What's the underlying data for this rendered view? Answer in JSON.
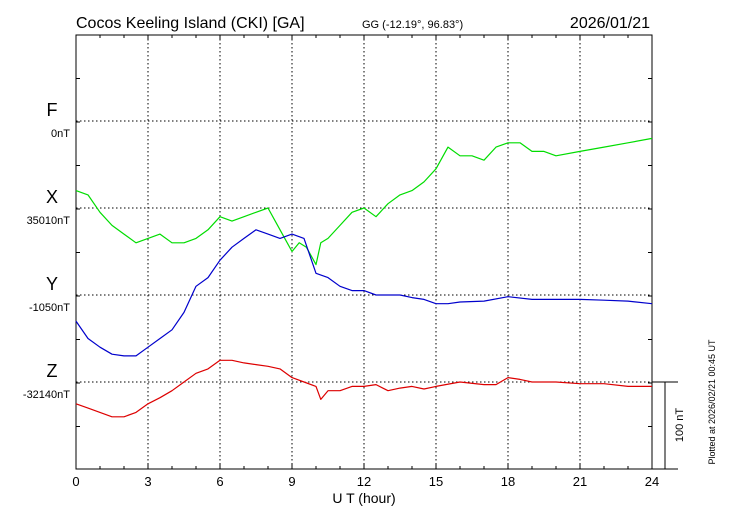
{
  "header": {
    "station": "Cocos Keeling Island (CKI)  [GA]",
    "coords": "GG (-12.19°,  96.83°)",
    "date": "2026/01/21"
  },
  "footer_note": "Plotted at 2026/02/21 00:45 UT",
  "chart_data": {
    "type": "line",
    "title": "Cocos Keeling Island (CKI)  [GA]",
    "xlabel": "U T (hour)",
    "xlim": [
      0,
      24
    ],
    "xticks": [
      "0",
      "3",
      "6",
      "9",
      "12",
      "15",
      "18",
      "21",
      "24"
    ],
    "grid": true,
    "scale_bar": {
      "label": "100 nT",
      "value_nT": 100
    },
    "colors": {
      "F": "#f0a800",
      "X": "#00dd00",
      "Y": "#0000cc",
      "Z": "#dd0000"
    },
    "series": [
      {
        "name": "F",
        "baseline_label": "0nT",
        "baseline_nT": 0,
        "x": [],
        "values": []
      },
      {
        "name": "X",
        "baseline_label": "35010nT",
        "baseline_nT": 35010,
        "x": [
          0,
          0.5,
          1,
          1.5,
          2,
          2.5,
          3,
          3.5,
          4,
          4.5,
          5,
          5.5,
          6,
          6.5,
          7,
          7.5,
          8,
          8.3,
          8.7,
          9,
          9.3,
          9.6,
          10,
          10.2,
          10.5,
          11,
          11.5,
          12,
          12.5,
          13,
          13.5,
          14,
          14.5,
          15,
          15.5,
          16,
          16.5,
          17,
          17.5,
          18,
          18.5,
          19,
          19.5,
          20,
          21,
          22,
          23,
          24
        ],
        "values": [
          35030,
          35025,
          35005,
          34990,
          34980,
          34970,
          34975,
          34980,
          34970,
          34970,
          34975,
          34985,
          35000,
          34995,
          35000,
          35005,
          35010,
          34995,
          34975,
          34960,
          34970,
          34965,
          34945,
          34970,
          34975,
          34990,
          35005,
          35010,
          35000,
          35015,
          35025,
          35030,
          35040,
          35055,
          35080,
          35070,
          35070,
          35065,
          35080,
          35085,
          35085,
          35075,
          35075,
          35070,
          35075,
          35080,
          35085,
          35090
        ]
      },
      {
        "name": "Y",
        "baseline_label": "-1050nT",
        "baseline_nT": -1050,
        "x": [
          0,
          0.5,
          1,
          1.5,
          2,
          2.5,
          3,
          3.5,
          4,
          4.5,
          5,
          5.5,
          6,
          6.5,
          7,
          7.5,
          8,
          8.5,
          9,
          9.5,
          10,
          10.5,
          11,
          11.5,
          12,
          12.5,
          13,
          13.5,
          14,
          14.5,
          15,
          15.5,
          16,
          17,
          18,
          19,
          20,
          21,
          22,
          23,
          24
        ],
        "values": [
          -1080,
          -1100,
          -1110,
          -1118,
          -1120,
          -1120,
          -1110,
          -1100,
          -1090,
          -1070,
          -1040,
          -1030,
          -1010,
          -995,
          -985,
          -975,
          -980,
          -985,
          -980,
          -985,
          -1025,
          -1030,
          -1040,
          -1045,
          -1045,
          -1050,
          -1050,
          -1050,
          -1053,
          -1055,
          -1060,
          -1060,
          -1058,
          -1057,
          -1052,
          -1055,
          -1055,
          -1055,
          -1056,
          -1057,
          -1060
        ]
      },
      {
        "name": "Z",
        "baseline_label": "-32140nT",
        "baseline_nT": -32140,
        "x": [
          0,
          0.5,
          1,
          1.5,
          2,
          2.5,
          3,
          3.5,
          4,
          4.5,
          5,
          5.5,
          6,
          6.5,
          7,
          7.5,
          8,
          8.5,
          9,
          9.5,
          10,
          10.2,
          10.5,
          11,
          11.5,
          12,
          12.5,
          13,
          13.5,
          14,
          14.5,
          15,
          16,
          17,
          17.5,
          18,
          18.5,
          19,
          20,
          21,
          22,
          23,
          24
        ],
        "values": [
          -32165,
          -32170,
          -32175,
          -32180,
          -32180,
          -32175,
          -32165,
          -32158,
          -32150,
          -32140,
          -32130,
          -32125,
          -32115,
          -32115,
          -32118,
          -32120,
          -32122,
          -32125,
          -32135,
          -32140,
          -32145,
          -32160,
          -32150,
          -32150,
          -32145,
          -32145,
          -32143,
          -32150,
          -32147,
          -32145,
          -32148,
          -32145,
          -32140,
          -32143,
          -32143,
          -32135,
          -32137,
          -32140,
          -32140,
          -32142,
          -32142,
          -32145,
          -32145
        ]
      }
    ]
  }
}
